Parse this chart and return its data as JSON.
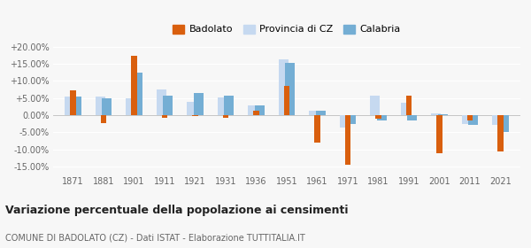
{
  "years": [
    1871,
    1881,
    1901,
    1911,
    1921,
    1931,
    1936,
    1951,
    1961,
    1971,
    1981,
    1991,
    2001,
    2011,
    2021
  ],
  "badolato": [
    7.2,
    -2.2,
    17.3,
    -0.8,
    -0.3,
    -0.8,
    1.2,
    8.6,
    -8.0,
    -14.5,
    -1.0,
    5.8,
    -11.0,
    -1.5,
    -10.5
  ],
  "provincia_cz": [
    5.4,
    5.5,
    5.0,
    7.5,
    4.0,
    5.2,
    2.9,
    16.2,
    1.4,
    -3.5,
    5.8,
    3.7,
    0.5,
    -2.5,
    -2.8
  ],
  "calabria": [
    5.5,
    4.8,
    12.5,
    5.8,
    6.6,
    5.8,
    2.9,
    15.2,
    1.4,
    -2.5,
    -1.5,
    -1.5,
    0.4,
    -2.8,
    -5.0
  ],
  "color_badolato": "#d95f0e",
  "color_provincia": "#c6d9f0",
  "color_calabria": "#74aed4",
  "legend_labels": [
    "Badolato",
    "Provincia di CZ",
    "Calabria"
  ],
  "title": "Variazione percentuale della popolazione ai censimenti",
  "subtitle": "COMUNE DI BADOLATO (CZ) - Dati ISTAT - Elaborazione TUTTITALIA.IT",
  "ylim": [
    -17,
    22
  ],
  "yticks": [
    -15,
    -10,
    -5,
    0,
    5,
    10,
    15,
    20
  ],
  "ytick_labels": [
    "-15.00%",
    "-10.00%",
    "-5.00%",
    "0.00%",
    "+5.00%",
    "+10.00%",
    "+15.00%",
    "+20.00%"
  ],
  "bg_color": "#f7f7f7",
  "grid_color": "#ffffff"
}
